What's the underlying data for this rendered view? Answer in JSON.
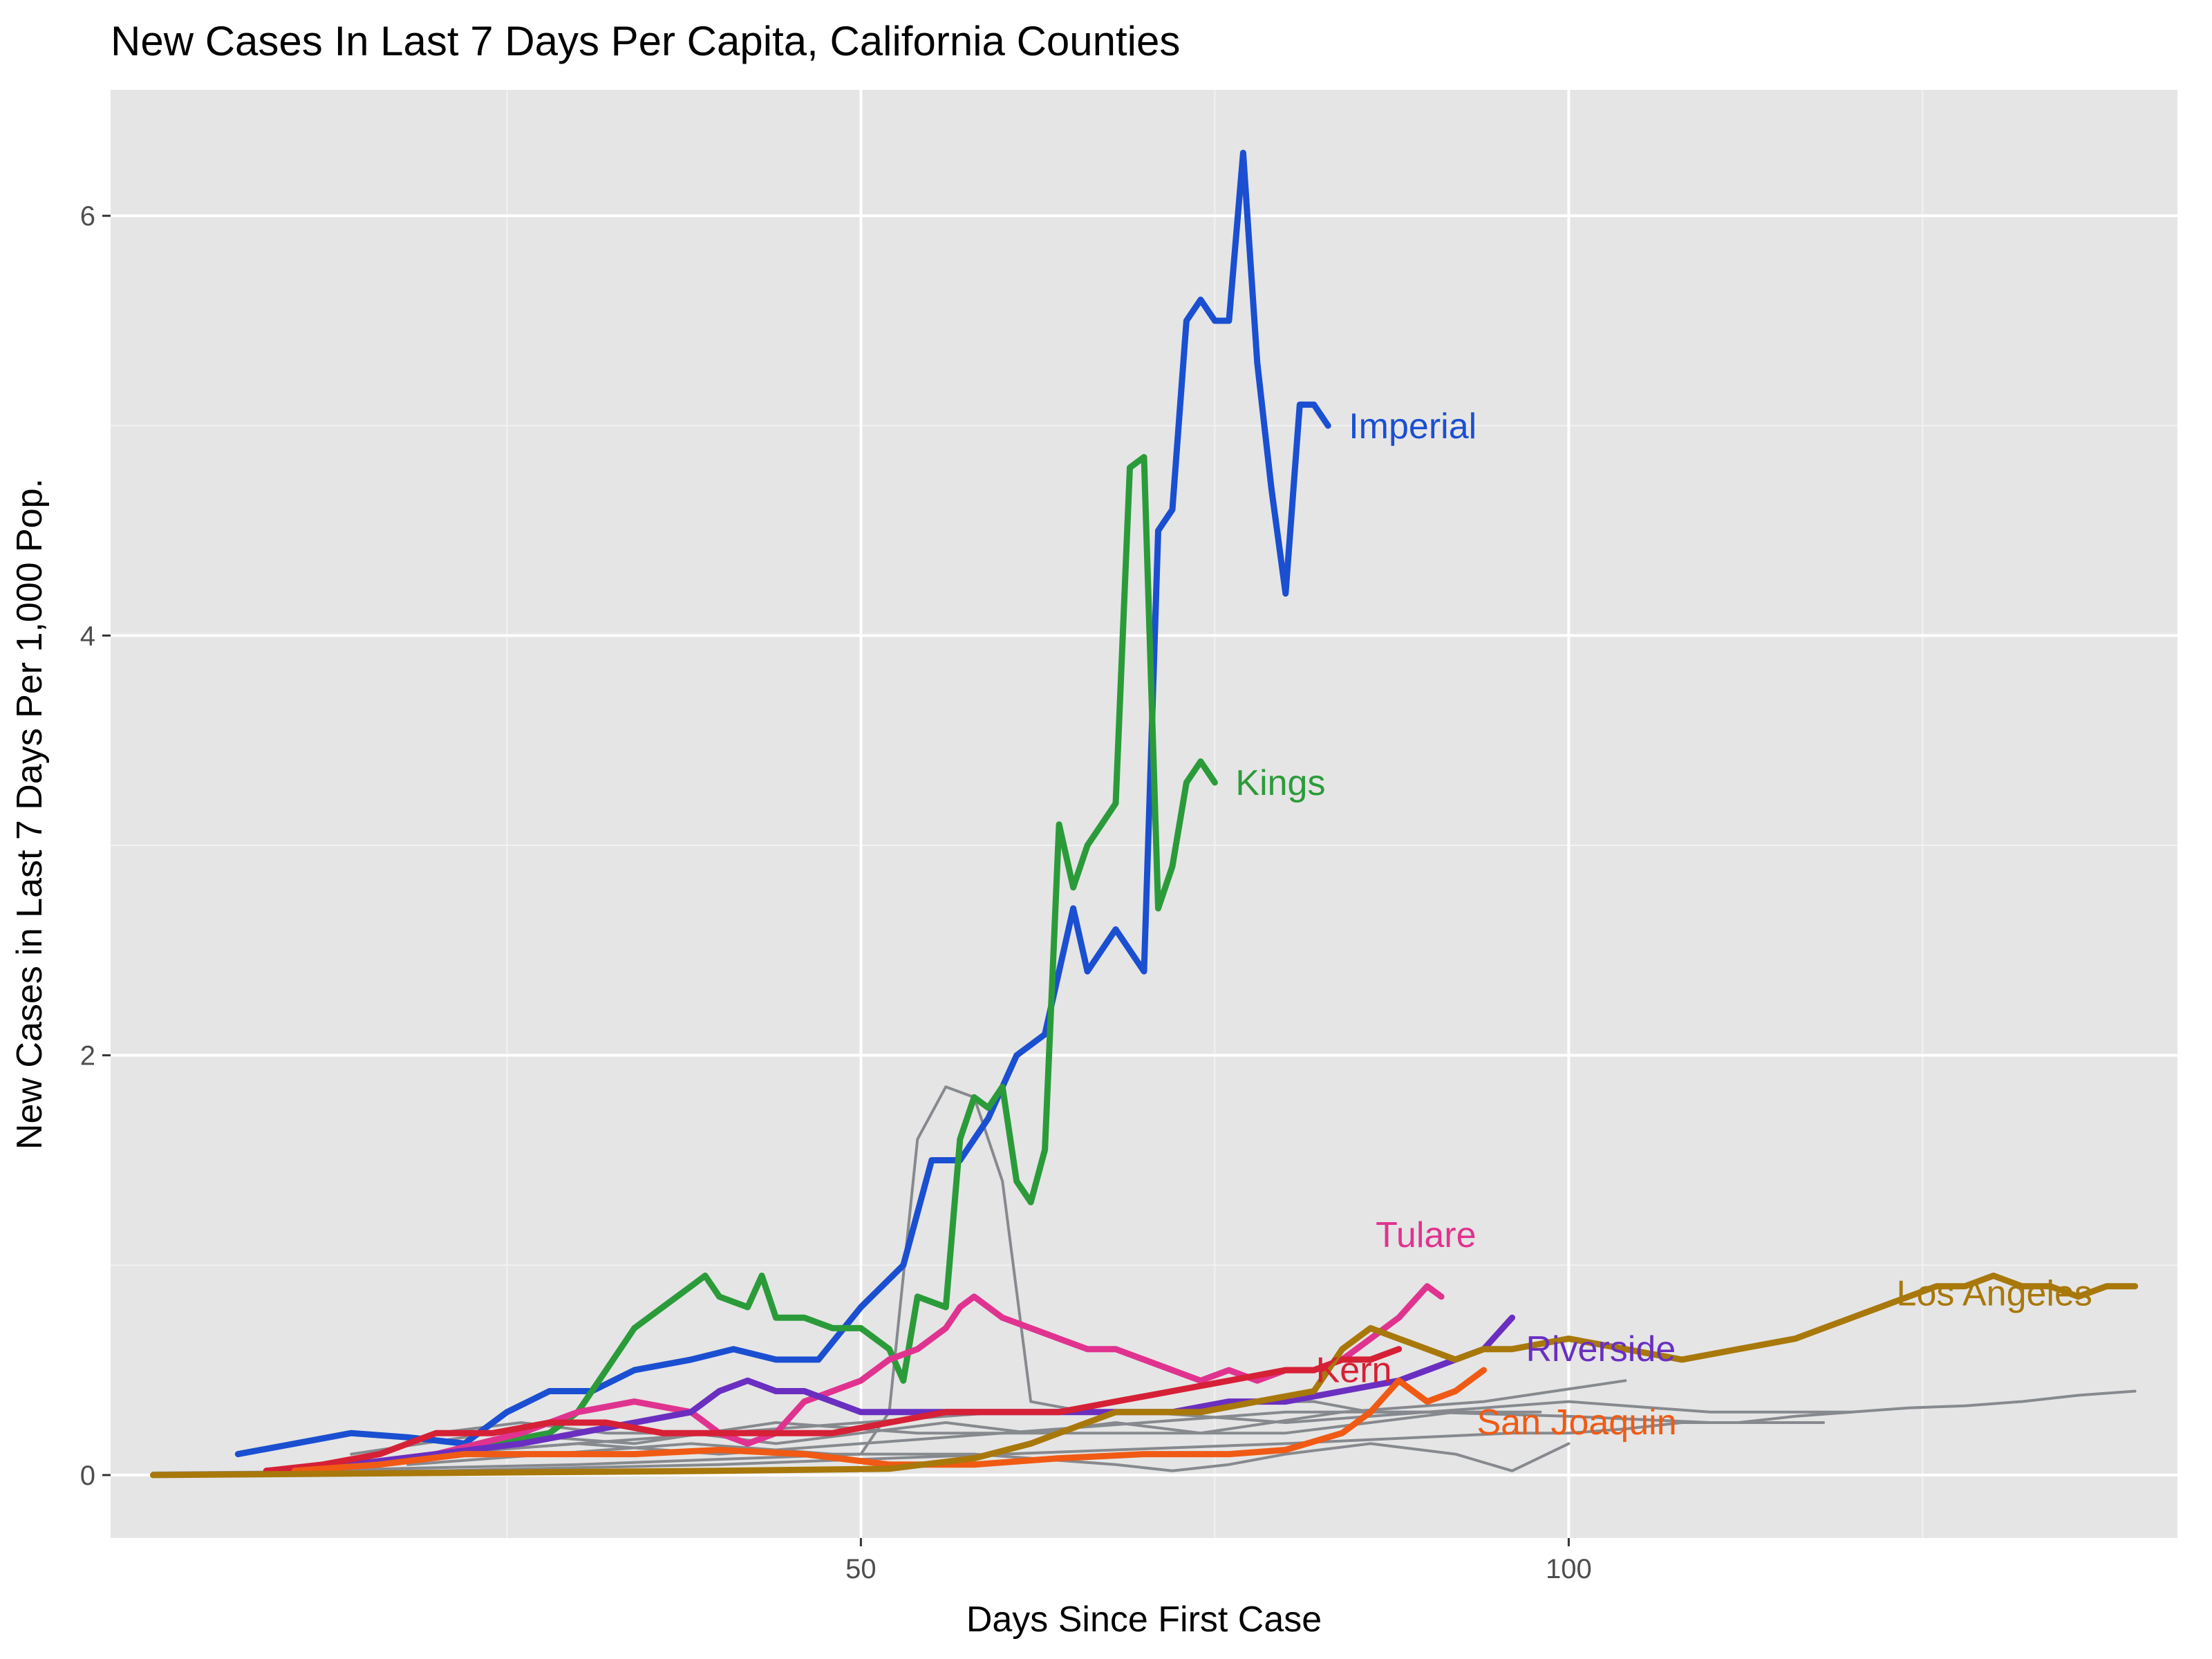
{
  "chart_data": {
    "type": "line",
    "title": "New Cases In Last 7 Days Per Capita, California Counties",
    "xlabel": "Days Since First Case",
    "ylabel": "New Cases in Last 7 Days Per 1,000 Pop.",
    "xlim": [
      -3,
      143
    ],
    "ylim": [
      -0.3,
      6.6
    ],
    "x_ticks": [
      50,
      100
    ],
    "x_tick_labels": [
      "50",
      "100"
    ],
    "y_ticks": [
      0,
      2,
      4,
      6
    ],
    "y_tick_labels": [
      "0",
      "2",
      "4",
      "6"
    ],
    "grid": true,
    "background": "#e5e5e5",
    "series": [
      {
        "name": "Imperial",
        "color": "#1a4fd1",
        "highlight": true,
        "x": [
          6,
          10,
          14,
          18,
          22,
          25,
          28,
          31,
          34,
          38,
          41,
          44,
          47,
          50,
          53,
          55,
          57,
          59,
          61,
          63,
          65,
          66,
          68,
          70,
          71,
          72,
          73,
          74,
          75,
          76,
          77,
          78,
          79,
          80,
          81,
          82,
          83
        ],
        "y": [
          0.1,
          0.15,
          0.2,
          0.18,
          0.15,
          0.3,
          0.4,
          0.4,
          0.5,
          0.55,
          0.6,
          0.55,
          0.55,
          0.8,
          1.0,
          1.5,
          1.5,
          1.7,
          2.0,
          2.1,
          2.7,
          2.4,
          2.6,
          2.4,
          4.5,
          4.6,
          5.5,
          5.6,
          5.5,
          5.5,
          6.3,
          5.3,
          4.7,
          4.2,
          5.1,
          5.1,
          5.0
        ]
      },
      {
        "name": "Kings",
        "color": "#2b9b3a",
        "highlight": true,
        "x": [
          20,
          24,
          28,
          30,
          32,
          34,
          36,
          38,
          39,
          40,
          42,
          43,
          44,
          46,
          48,
          50,
          52,
          53,
          54,
          56,
          57,
          58,
          59,
          60,
          61,
          62,
          63,
          64,
          65,
          66,
          67,
          68,
          69,
          70,
          71,
          72,
          73,
          74,
          75
        ],
        "y": [
          0.1,
          0.15,
          0.2,
          0.3,
          0.5,
          0.7,
          0.8,
          0.9,
          0.95,
          0.85,
          0.8,
          0.95,
          0.75,
          0.75,
          0.7,
          0.7,
          0.6,
          0.45,
          0.85,
          0.8,
          1.6,
          1.8,
          1.75,
          1.85,
          1.4,
          1.3,
          1.55,
          3.1,
          2.8,
          3.0,
          3.1,
          3.2,
          4.8,
          4.85,
          2.7,
          2.9,
          3.3,
          3.4,
          3.3
        ]
      },
      {
        "name": "Tulare",
        "color": "#e0338f",
        "highlight": true,
        "x": [
          8,
          14,
          20,
          26,
          30,
          34,
          38,
          40,
          42,
          44,
          46,
          48,
          50,
          52,
          54,
          56,
          57,
          58,
          59,
          60,
          62,
          64,
          66,
          68,
          70,
          72,
          74,
          76,
          78,
          80,
          82,
          84,
          86,
          88,
          90,
          91
        ],
        "y": [
          0.02,
          0.05,
          0.1,
          0.2,
          0.3,
          0.35,
          0.3,
          0.2,
          0.15,
          0.2,
          0.35,
          0.4,
          0.45,
          0.55,
          0.6,
          0.7,
          0.8,
          0.85,
          0.8,
          0.75,
          0.7,
          0.65,
          0.6,
          0.6,
          0.55,
          0.5,
          0.45,
          0.5,
          0.45,
          0.5,
          0.5,
          0.55,
          0.65,
          0.75,
          0.9,
          0.85
        ]
      },
      {
        "name": "Riverside",
        "color": "#6a2fc0",
        "highlight": true,
        "x": [
          8,
          14,
          20,
          26,
          30,
          34,
          38,
          40,
          42,
          44,
          46,
          48,
          50,
          52,
          56,
          60,
          64,
          68,
          72,
          76,
          80,
          84,
          88,
          90,
          92,
          94,
          96
        ],
        "y": [
          0.02,
          0.05,
          0.1,
          0.15,
          0.2,
          0.25,
          0.3,
          0.4,
          0.45,
          0.4,
          0.4,
          0.35,
          0.3,
          0.3,
          0.3,
          0.3,
          0.3,
          0.3,
          0.3,
          0.35,
          0.35,
          0.4,
          0.45,
          0.5,
          0.55,
          0.6,
          0.75
        ]
      },
      {
        "name": "Kern",
        "color": "#d62036",
        "highlight": true,
        "x": [
          8,
          12,
          16,
          20,
          24,
          28,
          32,
          36,
          40,
          44,
          48,
          52,
          56,
          60,
          64,
          68,
          72,
          76,
          80,
          82,
          84,
          86,
          88
        ],
        "y": [
          0.02,
          0.05,
          0.1,
          0.2,
          0.2,
          0.25,
          0.25,
          0.2,
          0.2,
          0.2,
          0.2,
          0.25,
          0.3,
          0.3,
          0.3,
          0.35,
          0.4,
          0.45,
          0.5,
          0.5,
          0.55,
          0.55,
          0.6
        ]
      },
      {
        "name": "San Joaquin",
        "color": "#f05a14",
        "highlight": true,
        "x": [
          10,
          16,
          22,
          28,
          34,
          40,
          46,
          52,
          58,
          64,
          70,
          76,
          80,
          84,
          86,
          88,
          90,
          92,
          94
        ],
        "y": [
          0.02,
          0.05,
          0.1,
          0.1,
          0.1,
          0.12,
          0.1,
          0.05,
          0.05,
          0.08,
          0.1,
          0.1,
          0.12,
          0.2,
          0.3,
          0.45,
          0.35,
          0.4,
          0.5
        ]
      },
      {
        "name": "Los Angeles",
        "color": "#a8780a",
        "highlight": true,
        "x": [
          0,
          20,
          40,
          52,
          58,
          62,
          68,
          74,
          78,
          82,
          84,
          86,
          88,
          90,
          92,
          94,
          96,
          100,
          104,
          108,
          112,
          116,
          118,
          120,
          122,
          124,
          126,
          128,
          130,
          132,
          134,
          136,
          138,
          140
        ],
        "y": [
          0.0,
          0.01,
          0.02,
          0.03,
          0.08,
          0.15,
          0.3,
          0.3,
          0.35,
          0.4,
          0.6,
          0.7,
          0.65,
          0.6,
          0.55,
          0.6,
          0.6,
          0.65,
          0.6,
          0.55,
          0.6,
          0.65,
          0.7,
          0.75,
          0.8,
          0.85,
          0.9,
          0.9,
          0.95,
          0.9,
          0.9,
          0.85,
          0.9,
          0.9
        ]
      },
      {
        "name": "",
        "color": "#86898e",
        "highlight": false,
        "x": [
          10,
          30,
          50,
          52,
          54,
          56,
          58,
          60,
          62,
          66,
          70,
          74,
          78,
          82,
          86,
          90
        ],
        "y": [
          0.02,
          0.05,
          0.1,
          0.3,
          1.6,
          1.85,
          1.8,
          1.4,
          0.35,
          0.3,
          0.3,
          0.3,
          0.35,
          0.35,
          0.3,
          0.3
        ]
      },
      {
        "name": "",
        "color": "#86898e",
        "highlight": false,
        "x": [
          0,
          20,
          40,
          60,
          80,
          96,
          100,
          104,
          108,
          112,
          116,
          120,
          124,
          128,
          132,
          136,
          140
        ],
        "y": [
          0.01,
          0.02,
          0.05,
          0.1,
          0.15,
          0.2,
          0.2,
          0.22,
          0.25,
          0.25,
          0.28,
          0.3,
          0.32,
          0.33,
          0.35,
          0.38,
          0.4
        ]
      },
      {
        "name": "",
        "color": "#86898e",
        "highlight": false,
        "x": [
          14,
          24,
          34,
          44,
          54,
          64,
          74,
          84,
          94,
          104
        ],
        "y": [
          0.1,
          0.2,
          0.15,
          0.25,
          0.2,
          0.2,
          0.2,
          0.3,
          0.35,
          0.45
        ]
      },
      {
        "name": "",
        "color": "#86898e",
        "highlight": false,
        "x": [
          14,
          20,
          26,
          32,
          38,
          44,
          50,
          56,
          62,
          68,
          74,
          80,
          86,
          92,
          98
        ],
        "y": [
          0.05,
          0.2,
          0.25,
          0.2,
          0.2,
          0.15,
          0.2,
          0.25,
          0.2,
          0.25,
          0.2,
          0.2,
          0.25,
          0.3,
          0.3
        ]
      },
      {
        "name": "",
        "color": "#86898e",
        "highlight": false,
        "x": [
          18,
          28,
          38,
          48,
          58,
          68,
          72,
          76,
          80,
          86,
          92,
          96,
          100
        ],
        "y": [
          0.05,
          0.1,
          0.15,
          0.1,
          0.1,
          0.05,
          0.02,
          0.05,
          0.1,
          0.15,
          0.1,
          0.02,
          0.15
        ]
      },
      {
        "name": "",
        "color": "#86898e",
        "highlight": false,
        "x": [
          20,
          30,
          40,
          50,
          60,
          70,
          80,
          90,
          100,
          110,
          120
        ],
        "y": [
          0.1,
          0.15,
          0.1,
          0.15,
          0.2,
          0.25,
          0.3,
          0.3,
          0.35,
          0.3,
          0.3
        ]
      },
      {
        "name": "",
        "color": "#86898e",
        "highlight": false,
        "x": [
          10,
          20,
          30,
          40,
          50,
          60,
          70,
          80,
          90,
          100,
          110,
          118
        ],
        "y": [
          0.02,
          0.1,
          0.15,
          0.2,
          0.25,
          0.3,
          0.3,
          0.25,
          0.3,
          0.28,
          0.25,
          0.25
        ]
      }
    ]
  }
}
